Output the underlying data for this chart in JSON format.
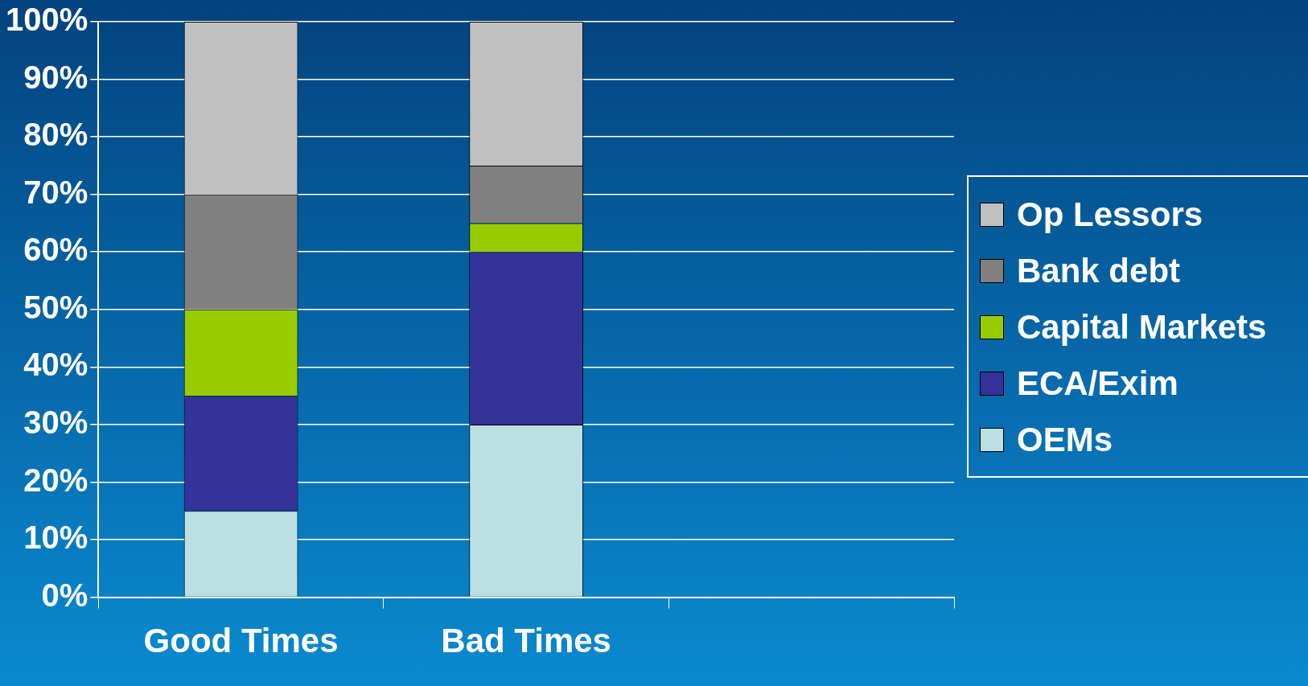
{
  "chart_data": {
    "type": "bar",
    "stacked": true,
    "categories": [
      "Good Times",
      "Bad Times",
      null
    ],
    "series": [
      {
        "name": "OEMs",
        "color": "#bbdfe2",
        "values": [
          15,
          30,
          null
        ]
      },
      {
        "name": "ECA/Exim",
        "color": "#333399",
        "values": [
          20,
          30,
          null
        ]
      },
      {
        "name": "Capital Markets",
        "color": "#99cc00",
        "values": [
          15,
          5,
          null
        ]
      },
      {
        "name": "Bank debt",
        "color": "#808080",
        "values": [
          20,
          10,
          null
        ]
      },
      {
        "name": "Op Lessors",
        "color": "#c0c0c0",
        "values": [
          30,
          25,
          null
        ]
      }
    ],
    "ylim": [
      0,
      100
    ],
    "yticks": [
      {
        "value": 0,
        "label": "0%"
      },
      {
        "value": 10,
        "label": "10%"
      },
      {
        "value": 20,
        "label": "20%"
      },
      {
        "value": 30,
        "label": "30%"
      },
      {
        "value": 40,
        "label": "40%"
      },
      {
        "value": 50,
        "label": "50%"
      },
      {
        "value": 60,
        "label": "60%"
      },
      {
        "value": 70,
        "label": "70%"
      },
      {
        "value": 80,
        "label": "80%"
      },
      {
        "value": 90,
        "label": "90%"
      },
      {
        "value": 100,
        "label": "100%"
      }
    ],
    "grid": "y",
    "legend": "right"
  }
}
